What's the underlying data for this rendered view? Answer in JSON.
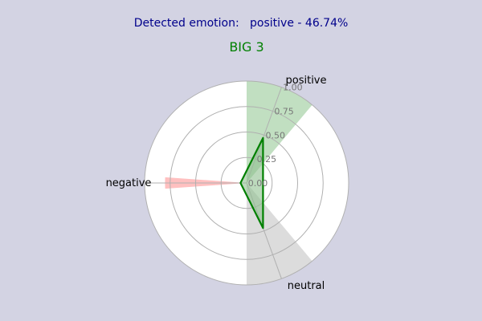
{
  "header": {
    "label": "Detected emotion:",
    "value": "positive - 46.74%",
    "color": "#00008b"
  },
  "chart_data": {
    "type": "radar",
    "title": "BIG 3",
    "title_color": "#008000",
    "categories": [
      "positive",
      "neutral",
      "negative"
    ],
    "angles_deg": [
      20,
      160,
      270
    ],
    "rlim": [
      0,
      1.0
    ],
    "rticks": [
      "0.00",
      "0.25",
      "0.50",
      "0.75",
      "1.00"
    ],
    "grid": true,
    "series": [
      {
        "values": [
          0.47,
          0.47,
          0.06
        ],
        "color": "#008000"
      }
    ],
    "sector_highlights": [
      {
        "category": "positive",
        "value": 1.0,
        "color": "#c1dfc1"
      },
      {
        "category": "neutral",
        "value": 1.0,
        "color": "#dcdcdc"
      },
      {
        "category": "negative",
        "value": 0.8,
        "color": "#ffc0c0"
      }
    ],
    "polygon_fill": "#8fbf8f"
  }
}
